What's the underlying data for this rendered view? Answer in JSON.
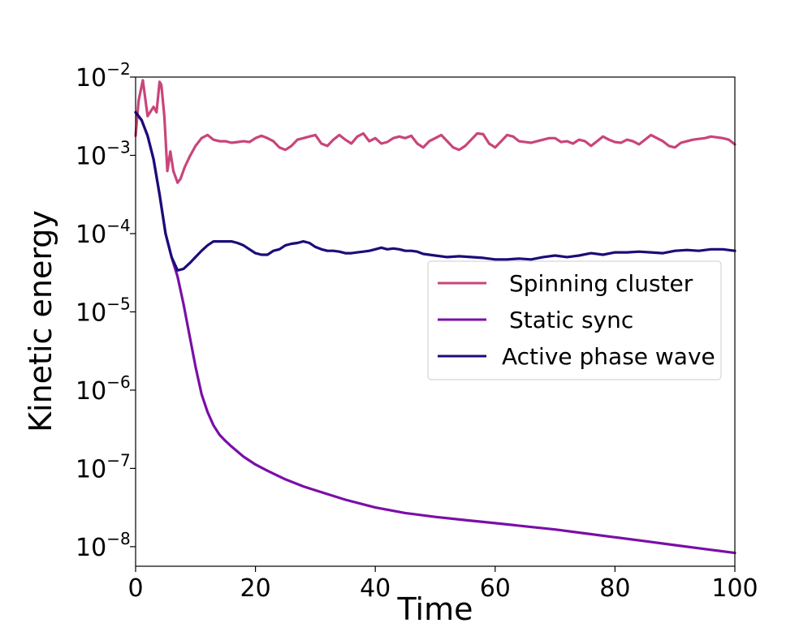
{
  "chart_data": {
    "type": "line",
    "title": "",
    "xlabel": "Time",
    "ylabel": "Kinetic energy",
    "xlim": [
      0,
      100
    ],
    "ylim_log10": [
      -8.25,
      -2.0
    ],
    "yscale": "log",
    "x_ticks": [
      0,
      20,
      40,
      60,
      80,
      100
    ],
    "y_ticks": [
      {
        "base": "10",
        "exp": "−2",
        "value": -2
      },
      {
        "base": "10",
        "exp": "−3",
        "value": -3
      },
      {
        "base": "10",
        "exp": "−4",
        "value": -4
      },
      {
        "base": "10",
        "exp": "−5",
        "value": -5
      },
      {
        "base": "10",
        "exp": "−6",
        "value": -6
      },
      {
        "base": "10",
        "exp": "−7",
        "value": -7
      },
      {
        "base": "10",
        "exp": "−8",
        "value": -8
      }
    ],
    "legend_position": "center-right",
    "series": [
      {
        "name": "Spinning cluster",
        "color": "#c9457a",
        "x": [
          0,
          0.5,
          1.2,
          2,
          3,
          3.5,
          4,
          4.3,
          4.8,
          5.3,
          5.8,
          6.3,
          7,
          7.5,
          8.2,
          9,
          10,
          11,
          12,
          13,
          14,
          15,
          16,
          17,
          18,
          19,
          20,
          21,
          22,
          23,
          24,
          25,
          26,
          27,
          28,
          29,
          30,
          31,
          32,
          33,
          34,
          35,
          36,
          37,
          38,
          39,
          40,
          41,
          42,
          43,
          44,
          45,
          46,
          47,
          48,
          49,
          50,
          51,
          52,
          53,
          54,
          55,
          56,
          57,
          58,
          59,
          60,
          61,
          62,
          63,
          64,
          65,
          66,
          67,
          68,
          69,
          70,
          71,
          72,
          73,
          74,
          75,
          76,
          77,
          78,
          79,
          80,
          81,
          82,
          83,
          84,
          85,
          86,
          87,
          88,
          89,
          90,
          91,
          92,
          93,
          94,
          95,
          96,
          97,
          98,
          99,
          100
        ],
        "log10y": [
          -2.75,
          -2.3,
          -2.04,
          -2.5,
          -2.38,
          -2.45,
          -2.06,
          -2.1,
          -2.5,
          -3.2,
          -2.95,
          -3.2,
          -3.35,
          -3.3,
          -3.15,
          -3.02,
          -2.88,
          -2.78,
          -2.74,
          -2.8,
          -2.82,
          -2.82,
          -2.84,
          -2.83,
          -2.82,
          -2.83,
          -2.78,
          -2.75,
          -2.78,
          -2.82,
          -2.9,
          -2.93,
          -2.88,
          -2.8,
          -2.78,
          -2.76,
          -2.74,
          -2.85,
          -2.88,
          -2.8,
          -2.74,
          -2.8,
          -2.85,
          -2.76,
          -2.72,
          -2.82,
          -2.78,
          -2.85,
          -2.83,
          -2.78,
          -2.76,
          -2.78,
          -2.75,
          -2.85,
          -2.9,
          -2.82,
          -2.78,
          -2.74,
          -2.82,
          -2.9,
          -2.93,
          -2.88,
          -2.8,
          -2.72,
          -2.73,
          -2.85,
          -2.9,
          -2.82,
          -2.74,
          -2.76,
          -2.82,
          -2.83,
          -2.84,
          -2.82,
          -2.8,
          -2.78,
          -2.78,
          -2.83,
          -2.82,
          -2.85,
          -2.8,
          -2.82,
          -2.88,
          -2.82,
          -2.76,
          -2.8,
          -2.83,
          -2.84,
          -2.8,
          -2.82,
          -2.86,
          -2.8,
          -2.74,
          -2.78,
          -2.82,
          -2.88,
          -2.9,
          -2.84,
          -2.82,
          -2.8,
          -2.79,
          -2.78,
          -2.76,
          -2.77,
          -2.78,
          -2.8,
          -2.86
        ]
      },
      {
        "name": "Static sync",
        "color": "#7a0fa8",
        "x": [
          0,
          1,
          2,
          3,
          4,
          5,
          6,
          7,
          8,
          9,
          10,
          11,
          12,
          13,
          14,
          15,
          16,
          18,
          20,
          22,
          25,
          28,
          30,
          35,
          40,
          45,
          50,
          55,
          60,
          65,
          70,
          75,
          80,
          85,
          90,
          95,
          100
        ],
        "log10y": [
          -2.45,
          -2.55,
          -2.75,
          -3.05,
          -3.5,
          -4.0,
          -4.3,
          -4.55,
          -4.9,
          -5.3,
          -5.7,
          -6.05,
          -6.28,
          -6.45,
          -6.57,
          -6.65,
          -6.72,
          -6.85,
          -6.95,
          -7.03,
          -7.14,
          -7.23,
          -7.28,
          -7.4,
          -7.5,
          -7.57,
          -7.62,
          -7.66,
          -7.7,
          -7.74,
          -7.78,
          -7.83,
          -7.88,
          -7.93,
          -7.98,
          -8.03,
          -8.08
        ]
      },
      {
        "name": "Active phase wave",
        "color": "#1a0d7a",
        "x": [
          0,
          1,
          2,
          3,
          4,
          5,
          6,
          7,
          8,
          9,
          10,
          11,
          12,
          13,
          14,
          15,
          16,
          17,
          18,
          19,
          20,
          21,
          22,
          23,
          24,
          25,
          26,
          27,
          28,
          29,
          30,
          31,
          32,
          33,
          34,
          35,
          36,
          37,
          38,
          39,
          40,
          41,
          42,
          43,
          44,
          45,
          46,
          47,
          48,
          49,
          50,
          52,
          54,
          56,
          58,
          60,
          62,
          64,
          66,
          68,
          70,
          72,
          74,
          76,
          78,
          80,
          82,
          84,
          86,
          88,
          90,
          92,
          94,
          96,
          98,
          100
        ],
        "log10y": [
          -2.45,
          -2.55,
          -2.75,
          -3.05,
          -3.5,
          -4.0,
          -4.3,
          -4.47,
          -4.45,
          -4.38,
          -4.3,
          -4.22,
          -4.15,
          -4.1,
          -4.1,
          -4.1,
          -4.1,
          -4.12,
          -4.15,
          -4.2,
          -4.25,
          -4.27,
          -4.27,
          -4.22,
          -4.2,
          -4.15,
          -4.13,
          -4.12,
          -4.1,
          -4.12,
          -4.17,
          -4.2,
          -4.22,
          -4.22,
          -4.23,
          -4.25,
          -4.25,
          -4.24,
          -4.23,
          -4.22,
          -4.2,
          -4.18,
          -4.2,
          -4.19,
          -4.2,
          -4.22,
          -4.22,
          -4.23,
          -4.26,
          -4.27,
          -4.28,
          -4.3,
          -4.29,
          -4.3,
          -4.31,
          -4.33,
          -4.33,
          -4.32,
          -4.33,
          -4.3,
          -4.28,
          -4.3,
          -4.28,
          -4.25,
          -4.27,
          -4.24,
          -4.24,
          -4.23,
          -4.24,
          -4.25,
          -4.22,
          -4.21,
          -4.22,
          -4.2,
          -4.2,
          -4.22
        ]
      }
    ]
  }
}
